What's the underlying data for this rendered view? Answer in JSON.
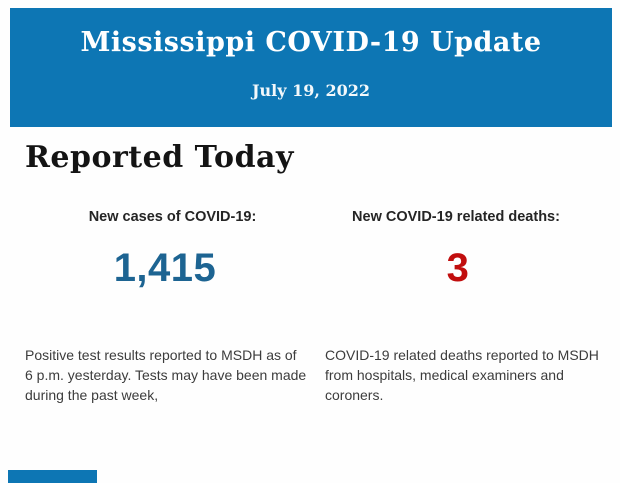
{
  "header": {
    "title": "Mississippi COVID-19 Update",
    "date": "July 19, 2022"
  },
  "section": {
    "heading": "Reported Today"
  },
  "stats": {
    "cases": {
      "label": "New cases of COVID-19:",
      "value": "1,415",
      "description": "Positive test results reported to MSDH as of 6 p.m. yesterday. Tests may have been made during the past week,"
    },
    "deaths": {
      "label": "New COVID-19 related deaths:",
      "value": "3",
      "description": "COVID-19 related deaths reported to MSDH from hospitals, medical examiners and coroners."
    }
  },
  "colors": {
    "header_bg": "#0d76b4",
    "cases_value": "#1d6492",
    "deaths_value": "#c10e0e"
  }
}
